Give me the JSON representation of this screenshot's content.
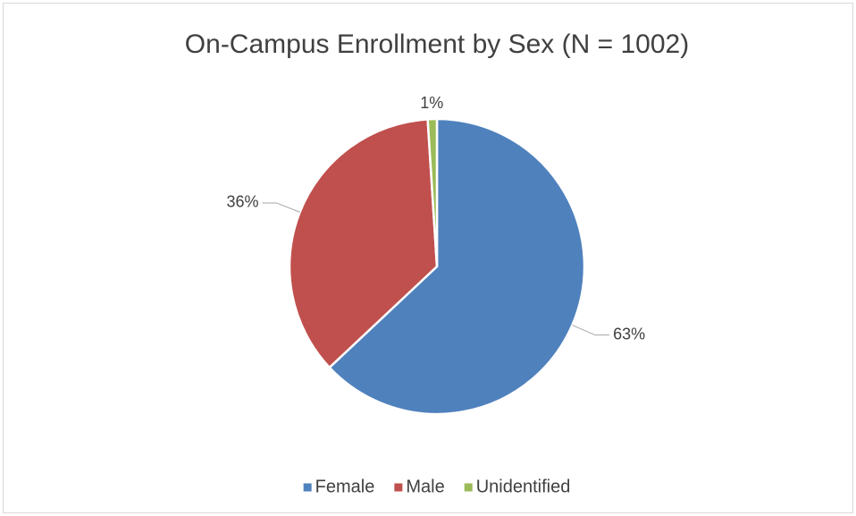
{
  "chart_data": {
    "type": "pie",
    "title": "On-Campus Enrollment by Sex (N = 1002)",
    "categories": [
      "Female",
      "Male",
      "Unidentified"
    ],
    "values": [
      63,
      36,
      1
    ],
    "value_labels": [
      "63%",
      "36%",
      "1%"
    ],
    "colors": [
      "#4f81bd",
      "#c0504d",
      "#9bbb59"
    ],
    "legend": "bottom"
  }
}
